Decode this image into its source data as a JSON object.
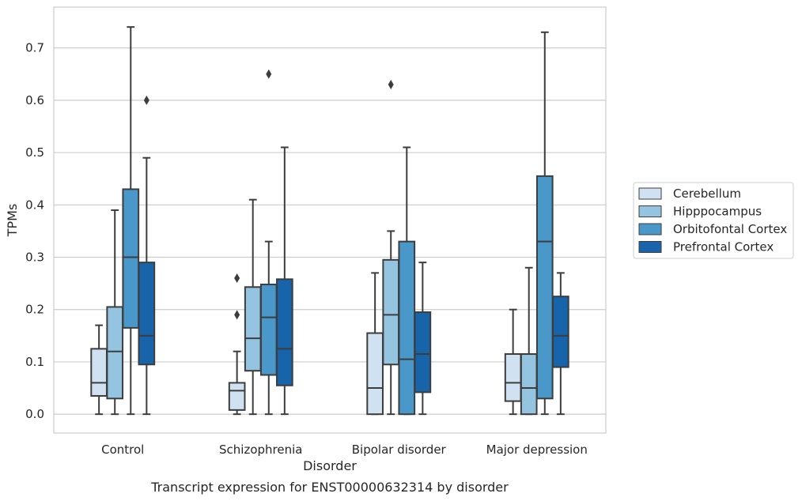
{
  "caption": "Transcript expression for ENST00000632314 by disorder",
  "chart_data": {
    "type": "box",
    "xlabel": "Disorder",
    "ylabel": "TPMs",
    "ylim": [
      -0.036,
      0.778
    ],
    "yticks": [
      0.0,
      0.1,
      0.2,
      0.3,
      0.4,
      0.5,
      0.6,
      0.7
    ],
    "ytick_labels": [
      "0.0",
      "0.1",
      "0.2",
      "0.3",
      "0.4",
      "0.5",
      "0.6",
      "0.7"
    ],
    "grid": "horizontal",
    "legend_position": "right",
    "categories": [
      "Control",
      "Schizophrenia",
      "Bipolar disorder",
      "Major depression"
    ],
    "series": [
      {
        "name": "Cerebellum",
        "color": "#d0e1f2",
        "boxes": [
          {
            "min": 0.0,
            "q1": 0.035,
            "median": 0.06,
            "q3": 0.125,
            "max": 0.17,
            "outliers": []
          },
          {
            "min": 0.0,
            "q1": 0.008,
            "median": 0.045,
            "q3": 0.06,
            "max": 0.12,
            "outliers": [
              0.19,
              0.26
            ]
          },
          {
            "min": 0.0,
            "q1": 0.0,
            "median": 0.05,
            "q3": 0.155,
            "max": 0.27,
            "outliers": []
          },
          {
            "min": 0.0,
            "q1": 0.025,
            "median": 0.06,
            "q3": 0.115,
            "max": 0.2,
            "outliers": []
          }
        ]
      },
      {
        "name": "Hipppocampus",
        "color": "#94c4df",
        "boxes": [
          {
            "min": 0.0,
            "q1": 0.03,
            "median": 0.12,
            "q3": 0.205,
            "max": 0.39,
            "outliers": []
          },
          {
            "min": 0.0,
            "q1": 0.083,
            "median": 0.145,
            "q3": 0.243,
            "max": 0.41,
            "outliers": []
          },
          {
            "min": 0.0,
            "q1": 0.095,
            "median": 0.19,
            "q3": 0.295,
            "max": 0.35,
            "outliers": [
              0.63
            ]
          },
          {
            "min": 0.0,
            "q1": 0.0,
            "median": 0.05,
            "q3": 0.115,
            "max": 0.28,
            "outliers": []
          }
        ]
      },
      {
        "name": "Orbitofontal Cortex",
        "color": "#4a98c9",
        "boxes": [
          {
            "min": 0.0,
            "q1": 0.165,
            "median": 0.3,
            "q3": 0.43,
            "max": 0.74,
            "outliers": []
          },
          {
            "min": 0.0,
            "q1": 0.075,
            "median": 0.185,
            "q3": 0.248,
            "max": 0.33,
            "outliers": [
              0.65
            ]
          },
          {
            "min": 0.0,
            "q1": 0.0,
            "median": 0.105,
            "q3": 0.33,
            "max": 0.51,
            "outliers": []
          },
          {
            "min": 0.0,
            "q1": 0.03,
            "median": 0.33,
            "q3": 0.455,
            "max": 0.73,
            "outliers": []
          }
        ]
      },
      {
        "name": "Prefrontal Cortex",
        "color": "#1764ab",
        "boxes": [
          {
            "min": 0.0,
            "q1": 0.095,
            "median": 0.15,
            "q3": 0.29,
            "max": 0.49,
            "outliers": [
              0.6
            ]
          },
          {
            "min": 0.0,
            "q1": 0.055,
            "median": 0.125,
            "q3": 0.258,
            "max": 0.51,
            "outliers": []
          },
          {
            "min": 0.0,
            "q1": 0.042,
            "median": 0.115,
            "q3": 0.195,
            "max": 0.29,
            "outliers": []
          },
          {
            "min": 0.0,
            "q1": 0.09,
            "median": 0.15,
            "q3": 0.225,
            "max": 0.27,
            "outliers": []
          }
        ]
      }
    ]
  }
}
